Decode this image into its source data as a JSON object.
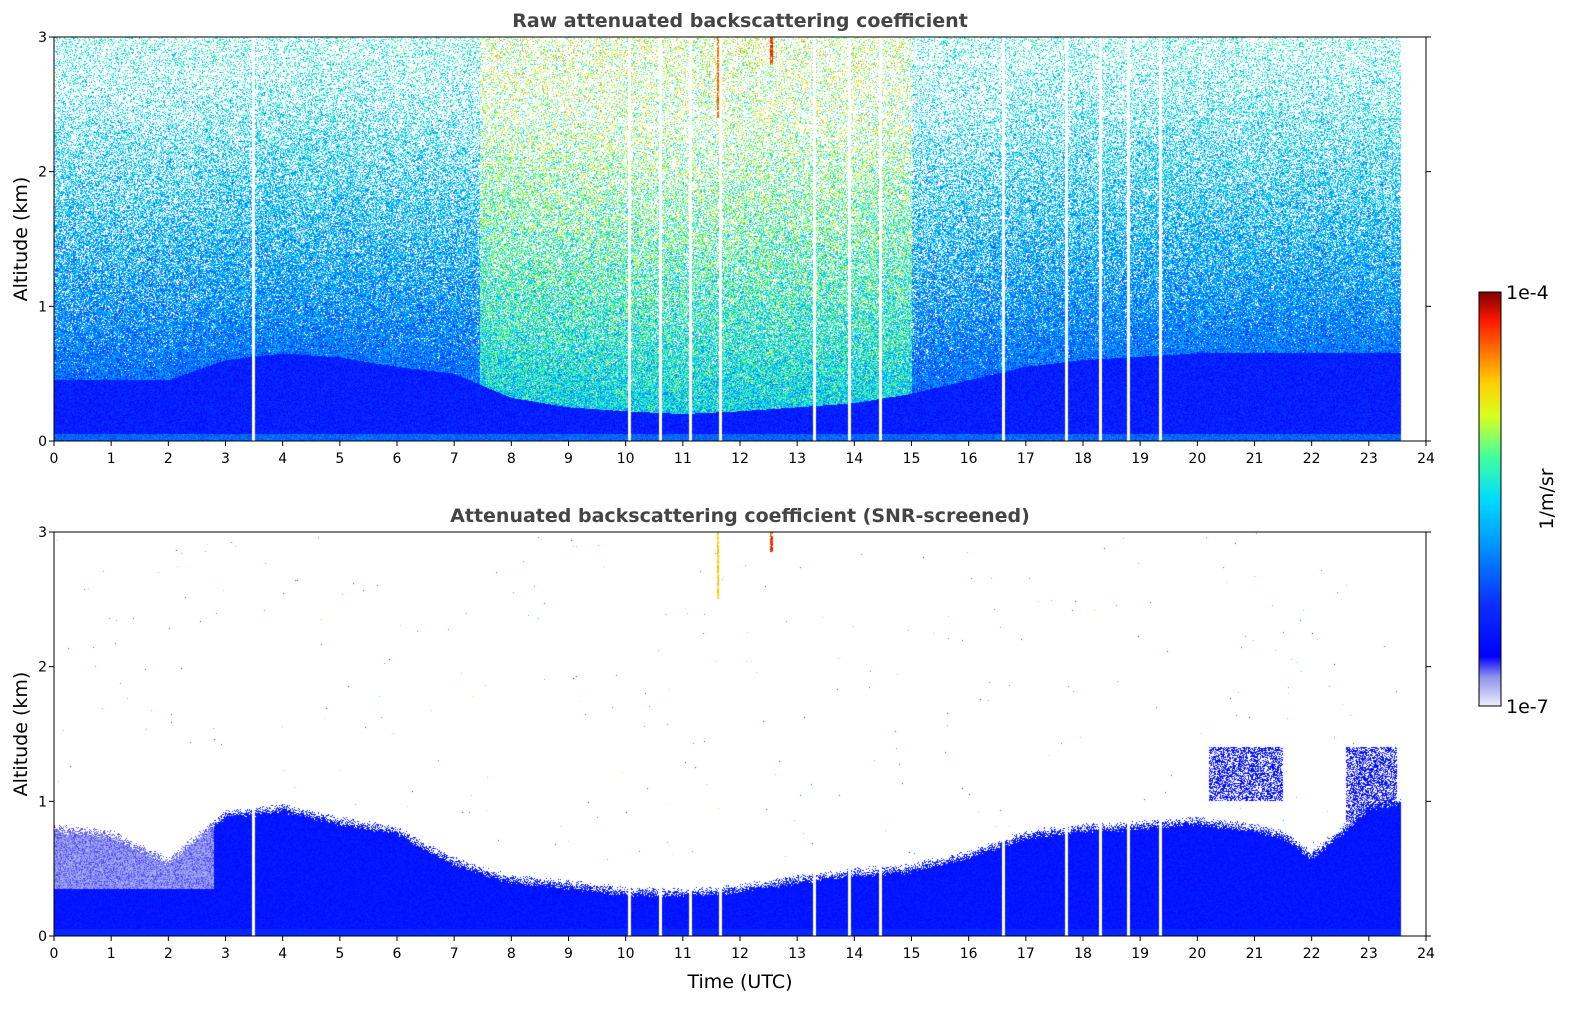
{
  "chart_data": [
    {
      "type": "heatmap",
      "title": "Raw attenuated backscattering coefficient",
      "xlabel": "",
      "ylabel": "Altitude (km)",
      "x_ticks": [
        "0",
        "1",
        "2",
        "3",
        "4",
        "5",
        "6",
        "7",
        "8",
        "9",
        "10",
        "11",
        "12",
        "13",
        "14",
        "15",
        "16",
        "17",
        "18",
        "19",
        "20",
        "21",
        "22",
        "23",
        "24"
      ],
      "y_ticks": [
        "0",
        "1",
        "2",
        "3"
      ],
      "xlim": [
        0,
        24
      ],
      "ylim": [
        0,
        3
      ],
      "data_extent_hours": [
        0,
        23.55
      ],
      "colorbar": "shared",
      "features": {
        "boundary_layer_top_km": [
          [
            0,
            0.45
          ],
          [
            2,
            0.45
          ],
          [
            3,
            0.6
          ],
          [
            4,
            0.65
          ],
          [
            5,
            0.62
          ],
          [
            6,
            0.55
          ],
          [
            7,
            0.5
          ],
          [
            8,
            0.32
          ],
          [
            9,
            0.25
          ],
          [
            10,
            0.22
          ],
          [
            11,
            0.2
          ],
          [
            12,
            0.22
          ],
          [
            13,
            0.25
          ],
          [
            14,
            0.28
          ],
          [
            15,
            0.35
          ],
          [
            16,
            0.45
          ],
          [
            17,
            0.55
          ],
          [
            18,
            0.6
          ],
          [
            20,
            0.65
          ],
          [
            22,
            0.65
          ],
          [
            23.5,
            0.65
          ]
        ],
        "elevated_noise_period_hours": [
          7.45,
          15.0
        ],
        "high_signal_columns": [
          {
            "hour": 11.62,
            "from_km": 2.4,
            "to_km": 3.0
          },
          {
            "hour": 12.55,
            "from_km": 2.8,
            "to_km": 3.0
          }
        ],
        "missing_profile_hours": [
          3.48,
          10.05,
          10.6,
          11.12,
          11.65,
          13.3,
          13.9,
          14.45,
          16.6,
          17.7,
          18.3,
          18.78,
          19.35
        ]
      }
    },
    {
      "type": "heatmap",
      "title": "Attenuated backscattering coefficient (SNR-screened)",
      "xlabel": "Time (UTC)",
      "ylabel": "Altitude (km)",
      "x_ticks": [
        "0",
        "1",
        "2",
        "3",
        "4",
        "5",
        "6",
        "7",
        "8",
        "9",
        "10",
        "11",
        "12",
        "13",
        "14",
        "15",
        "16",
        "17",
        "18",
        "19",
        "20",
        "21",
        "22",
        "23",
        "24"
      ],
      "y_ticks": [
        "0",
        "1",
        "2",
        "3"
      ],
      "xlim": [
        0,
        24
      ],
      "ylim": [
        0,
        3
      ],
      "data_extent_hours": [
        0,
        23.55
      ],
      "colorbar": "shared",
      "features": {
        "screened_layer_top_km": [
          [
            0,
            0.8
          ],
          [
            1,
            0.75
          ],
          [
            2,
            0.55
          ],
          [
            3,
            0.9
          ],
          [
            4,
            0.95
          ],
          [
            5,
            0.85
          ],
          [
            6,
            0.78
          ],
          [
            7,
            0.55
          ],
          [
            8,
            0.42
          ],
          [
            9,
            0.38
          ],
          [
            10,
            0.33
          ],
          [
            11,
            0.32
          ],
          [
            12,
            0.35
          ],
          [
            13,
            0.42
          ],
          [
            14,
            0.47
          ],
          [
            15,
            0.5
          ],
          [
            16,
            0.6
          ],
          [
            17,
            0.75
          ],
          [
            18,
            0.8
          ],
          [
            19,
            0.82
          ],
          [
            20,
            0.85
          ],
          [
            21,
            0.8
          ],
          [
            21.5,
            0.75
          ],
          [
            22,
            0.6
          ],
          [
            22.3,
            0.7
          ],
          [
            23,
            0.95
          ],
          [
            23.5,
            1.0
          ]
        ],
        "cloud_patches": [
          {
            "from_hour": 20.2,
            "to_hour": 21.5,
            "from_km": 1.0,
            "to_km": 1.4
          },
          {
            "from_hour": 22.6,
            "to_hour": 23.5,
            "from_km": 0.85,
            "to_km": 1.4
          }
        ],
        "high_signal_columns": [
          {
            "hour": 11.62,
            "from_km": 2.5,
            "to_km": 3.0
          },
          {
            "hour": 12.55,
            "from_km": 2.85,
            "to_km": 3.0
          }
        ],
        "missing_profile_hours": [
          3.48,
          10.05,
          10.6,
          11.12,
          11.65,
          13.3,
          13.9,
          14.45,
          16.6,
          17.7,
          18.3,
          18.78,
          19.35
        ]
      }
    }
  ],
  "colorbar": {
    "label": "1/m/sr",
    "max_label": "1e-4",
    "min_label": "1e-7",
    "scale": "log",
    "range": [
      1e-07,
      0.0001
    ],
    "colormap": "jet-like (white-lavender at low end, blue, cyan, green, yellow, orange, red, dark red at high end)"
  }
}
